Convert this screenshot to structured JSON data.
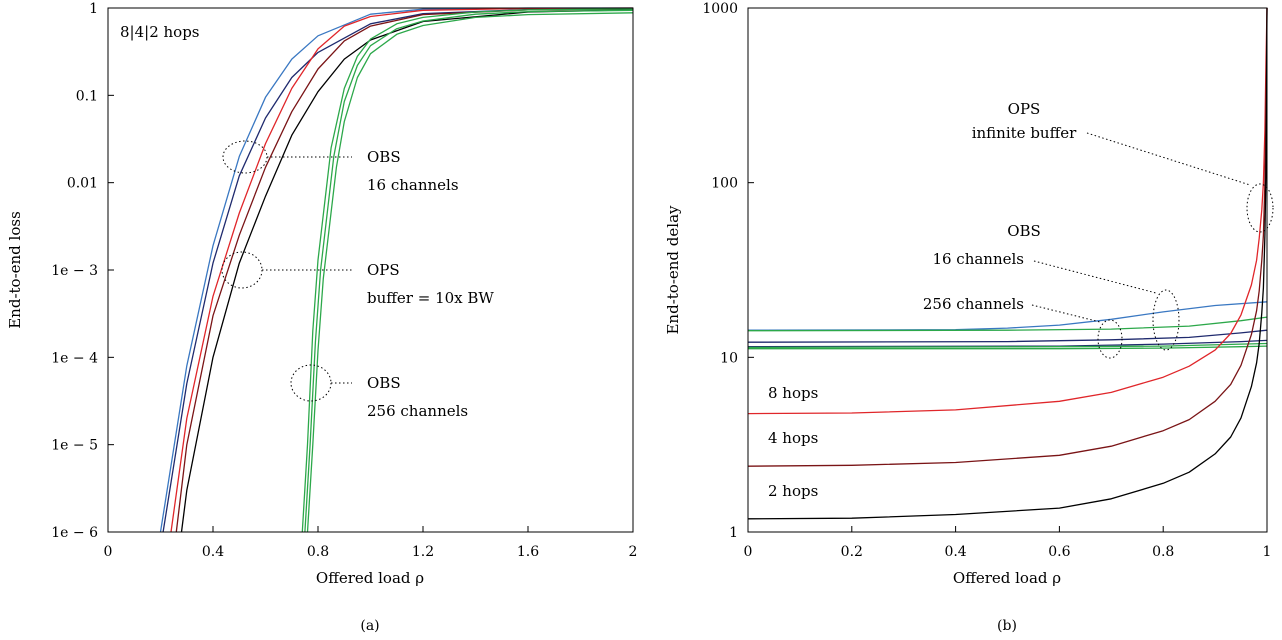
{
  "chart_data": [
    {
      "type": "line",
      "panel": "(a)",
      "xlabel": "Offered load ρ",
      "ylabel": "End-to-end loss",
      "xscale": "linear",
      "yscale": "log",
      "xlim": [
        0,
        2
      ],
      "ylim": [
        1e-06,
        1
      ],
      "xticks": [
        0,
        0.4,
        0.8,
        1.2,
        1.6,
        2
      ],
      "xtick_labels": [
        "0",
        "0.4",
        "0.8",
        "1.2",
        "1.6",
        "2"
      ],
      "yticks": [
        1e-06,
        1e-05,
        0.0001,
        0.001,
        0.01,
        0.1,
        1
      ],
      "ytick_labels": [
        "1e − 6",
        "1e − 5",
        "1e − 4",
        "1e − 3",
        "0.01",
        "0.1",
        "1"
      ],
      "grid": false,
      "annotations": [
        "8|4|2 hops",
        "OBS 16 channels",
        "OPS buffer = 10x BW",
        "OBS 256 channels"
      ],
      "series": [
        {
          "color": "#3a78c2",
          "x": [
            0.2,
            0.3,
            0.4,
            0.5,
            0.6,
            0.7,
            0.8,
            1.0,
            1.2,
            1.6,
            2.0
          ],
          "y": [
            1e-06,
            8e-05,
            0.0019,
            0.02,
            0.095,
            0.26,
            0.48,
            0.85,
            0.97,
            1.0,
            1.0
          ]
        },
        {
          "color": "#1f2a6e",
          "x": [
            0.21,
            0.3,
            0.4,
            0.5,
            0.6,
            0.7,
            0.8,
            1.0,
            1.2,
            1.6,
            2.0
          ],
          "y": [
            1e-06,
            5e-05,
            0.0012,
            0.012,
            0.055,
            0.16,
            0.31,
            0.66,
            0.86,
            0.96,
            0.97
          ]
        },
        {
          "color": "#e0262a",
          "x": [
            0.24,
            0.3,
            0.4,
            0.5,
            0.6,
            0.7,
            0.8,
            0.9,
            1.0,
            1.2,
            1.6,
            2.0
          ],
          "y": [
            1e-06,
            2e-05,
            0.0005,
            0.0045,
            0.028,
            0.12,
            0.34,
            0.62,
            0.8,
            0.94,
            0.99,
            1.0
          ]
        },
        {
          "color": "#7a1416",
          "x": [
            0.26,
            0.3,
            0.4,
            0.5,
            0.6,
            0.7,
            0.8,
            0.9,
            1.0,
            1.2,
            1.6,
            2.0
          ],
          "y": [
            1e-06,
            1e-05,
            0.0003,
            0.0025,
            0.015,
            0.065,
            0.2,
            0.42,
            0.62,
            0.84,
            0.95,
            0.97
          ]
        },
        {
          "color": "#000000",
          "x": [
            0.28,
            0.3,
            0.4,
            0.5,
            0.6,
            0.7,
            0.8,
            0.9,
            1.0,
            1.2,
            1.6,
            2.0
          ],
          "y": [
            1e-06,
            3e-06,
            0.0001,
            0.0012,
            0.007,
            0.035,
            0.11,
            0.26,
            0.43,
            0.7,
            0.9,
            0.95
          ]
        },
        {
          "color": "#2ca84a",
          "x": [
            0.74,
            0.76,
            0.78,
            0.8,
            0.85,
            0.9,
            0.95,
            1.0,
            1.1,
            1.2,
            1.4,
            1.6,
            2.0
          ],
          "y": [
            1e-06,
            1e-05,
            0.0002,
            0.0013,
            0.025,
            0.12,
            0.28,
            0.44,
            0.66,
            0.78,
            0.9,
            0.95,
            0.98
          ]
        },
        {
          "color": "#2ca84a",
          "x": [
            0.75,
            0.77,
            0.79,
            0.81,
            0.86,
            0.9,
            0.95,
            1.0,
            1.1,
            1.2,
            1.4,
            1.6,
            2.0
          ],
          "y": [
            1e-06,
            1e-05,
            0.00015,
            0.001,
            0.02,
            0.085,
            0.22,
            0.37,
            0.58,
            0.71,
            0.85,
            0.91,
            0.94
          ]
        },
        {
          "color": "#2ca84a",
          "x": [
            0.76,
            0.78,
            0.8,
            0.82,
            0.87,
            0.9,
            0.95,
            1.0,
            1.1,
            1.2,
            1.4,
            1.6,
            2.0
          ],
          "y": [
            1e-06,
            1e-05,
            0.00012,
            0.0008,
            0.015,
            0.05,
            0.16,
            0.3,
            0.5,
            0.63,
            0.78,
            0.84,
            0.88
          ]
        }
      ]
    },
    {
      "type": "line",
      "panel": "(b)",
      "xlabel": "Offered load ρ",
      "ylabel": "End-to-end delay",
      "xscale": "linear",
      "yscale": "log",
      "xlim": [
        0,
        1
      ],
      "ylim": [
        1,
        1000
      ],
      "xticks": [
        0,
        0.2,
        0.4,
        0.6,
        0.8,
        1
      ],
      "xtick_labels": [
        "0",
        "0.2",
        "0.4",
        "0.6",
        "0.8",
        "1"
      ],
      "yticks": [
        1,
        10,
        100,
        1000
      ],
      "ytick_labels": [
        "1",
        "10",
        "100",
        "1000"
      ],
      "grid": false,
      "annotations": [
        "OPS infinite buffer",
        "OBS 16 channels",
        "256 channels",
        "8 hops",
        "4 hops",
        "2 hops"
      ],
      "series": [
        {
          "color": "#3a78c2",
          "x": [
            0,
            0.4,
            0.5,
            0.6,
            0.7,
            0.8,
            0.9,
            1.0
          ],
          "y": [
            14.3,
            14.4,
            14.7,
            15.3,
            16.5,
            18.2,
            19.8,
            20.8
          ]
        },
        {
          "color": "#2ca84a",
          "x": [
            0,
            0.5,
            0.7,
            0.85,
            0.95,
            1.0
          ],
          "y": [
            14.2,
            14.3,
            14.5,
            15.1,
            16.2,
            17.0
          ]
        },
        {
          "color": "#1f2a6e",
          "x": [
            0,
            0.5,
            0.7,
            0.85,
            0.95,
            1.0
          ],
          "y": [
            12.2,
            12.3,
            12.6,
            13.0,
            13.8,
            14.3
          ]
        },
        {
          "color": "#1f2a6e",
          "x": [
            0,
            0.6,
            0.8,
            0.95,
            1.0
          ],
          "y": [
            11.5,
            11.6,
            11.9,
            12.3,
            12.5
          ]
        },
        {
          "color": "#2ca84a",
          "x": [
            0,
            0.6,
            0.8,
            0.95,
            1.0
          ],
          "y": [
            11.4,
            11.5,
            11.6,
            11.9,
            12.0
          ]
        },
        {
          "color": "#2ca84a",
          "x": [
            0,
            0.6,
            0.8,
            0.95,
            1.0
          ],
          "y": [
            11.2,
            11.2,
            11.3,
            11.5,
            11.6
          ]
        },
        {
          "color": "#e0262a",
          "x": [
            0,
            0.2,
            0.4,
            0.6,
            0.7,
            0.8,
            0.85,
            0.9,
            0.93,
            0.95,
            0.97,
            0.98,
            0.985,
            0.99,
            0.993,
            0.996,
            0.998,
            1.0
          ],
          "y": [
            4.76,
            4.8,
            5.0,
            5.6,
            6.3,
            7.7,
            8.9,
            11.0,
            13.7,
            17.5,
            26,
            36,
            48,
            70,
            100,
            200,
            500,
            1000
          ]
        },
        {
          "color": "#7a1416",
          "x": [
            0,
            0.2,
            0.4,
            0.6,
            0.7,
            0.8,
            0.85,
            0.9,
            0.93,
            0.95,
            0.97,
            0.98,
            0.985,
            0.99,
            0.993,
            0.996,
            0.998,
            1.0
          ],
          "y": [
            2.38,
            2.41,
            2.5,
            2.75,
            3.1,
            3.8,
            4.4,
            5.6,
            7.0,
            9.0,
            13.5,
            18.5,
            24,
            36,
            50,
            100,
            250,
            1000
          ]
        },
        {
          "color": "#000000",
          "x": [
            0,
            0.2,
            0.4,
            0.6,
            0.7,
            0.8,
            0.85,
            0.9,
            0.93,
            0.95,
            0.97,
            0.98,
            0.985,
            0.99,
            0.993,
            0.996,
            0.998,
            1.0
          ],
          "y": [
            1.19,
            1.2,
            1.26,
            1.37,
            1.55,
            1.9,
            2.2,
            2.8,
            3.5,
            4.5,
            6.8,
            9.3,
            12,
            18,
            25,
            50,
            120,
            1000
          ]
        }
      ]
    }
  ]
}
